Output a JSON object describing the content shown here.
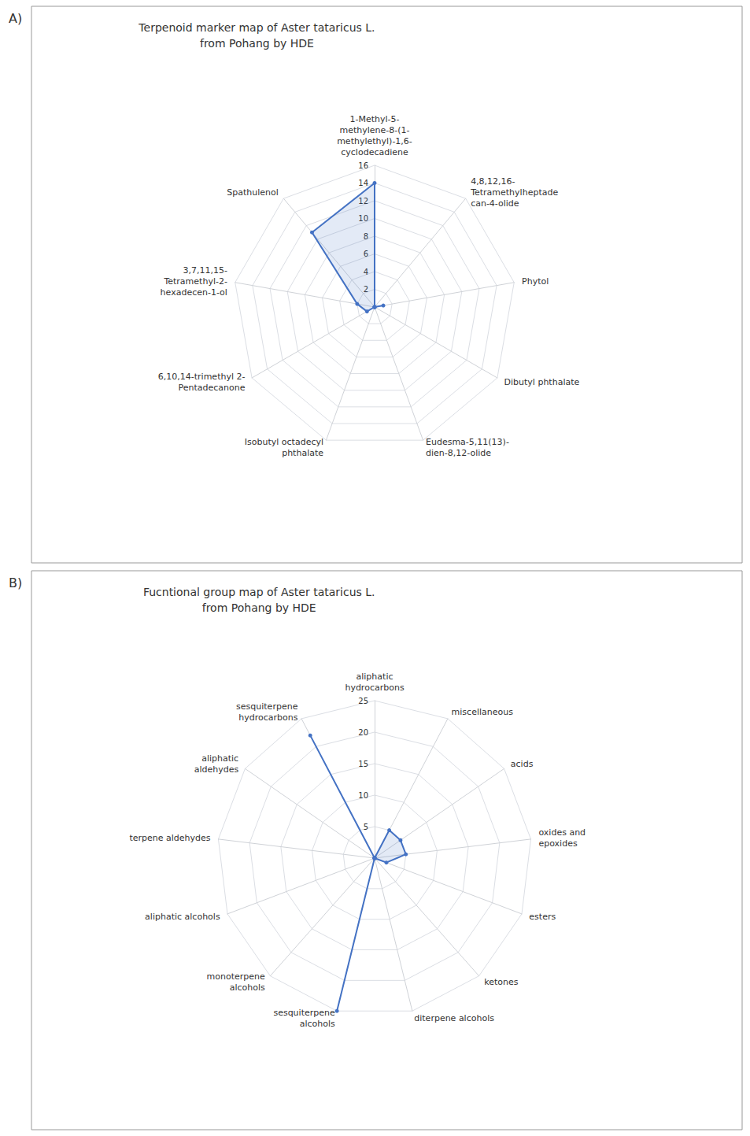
{
  "chart_data": [
    {
      "type": "radar",
      "title": "Terpenoid marker map of Aster tataricus L.\nfrom Pohang by HDE",
      "annotations": [
        "A)"
      ],
      "categories": [
        "1-Methyl-5-\nmethylene-8-(1-\nmethylethyl)-1,6-\ncyclodecadiene",
        "Spathulenol",
        "3,7,11,15-\nTetramethyl-2-\nhexadecen-1-ol",
        "6,10,14-trimethyl 2-\nPentadecanone",
        "Isobutyl octadecyl\nphthalate",
        "Eudesma-5,11(13)-\ndien-8,12-olide",
        "Dibutyl phthalate",
        "Phytol",
        "4,8,12,16-\nTetramethylheptade\ncan-4-olide"
      ],
      "values": [
        14,
        11,
        2,
        1,
        0,
        0,
        0,
        1,
        0
      ],
      "ylim": [
        0,
        16
      ],
      "yticks": [
        2,
        4,
        6,
        8,
        10,
        12,
        14,
        16
      ],
      "color": "#4472C4",
      "grid": true
    },
    {
      "type": "radar",
      "title": "Fucntional group map of Aster tataricus L.\nfrom Pohang by HDE",
      "annotations": [
        "B)"
      ],
      "categories": [
        "aliphatic\nhydrocarbons",
        "sesquiterpene\nhydrocarbons",
        "aliphatic\naldehydes",
        "terpene aldehydes",
        "aliphatic alcohols",
        "monoterpene\nalcohols",
        "sesquiterpene\nalcohols",
        "diterpene alcohols",
        "ketones",
        "esters",
        "oxides and\nepoxides",
        "acids",
        "miscellaneous"
      ],
      "values": [
        0,
        22,
        0,
        0,
        0,
        0,
        25,
        0,
        0,
        2,
        5,
        5,
        5
      ],
      "ylim": [
        0,
        25
      ],
      "yticks": [
        5,
        10,
        15,
        20,
        25
      ],
      "color": "#4472C4",
      "grid": true
    }
  ]
}
